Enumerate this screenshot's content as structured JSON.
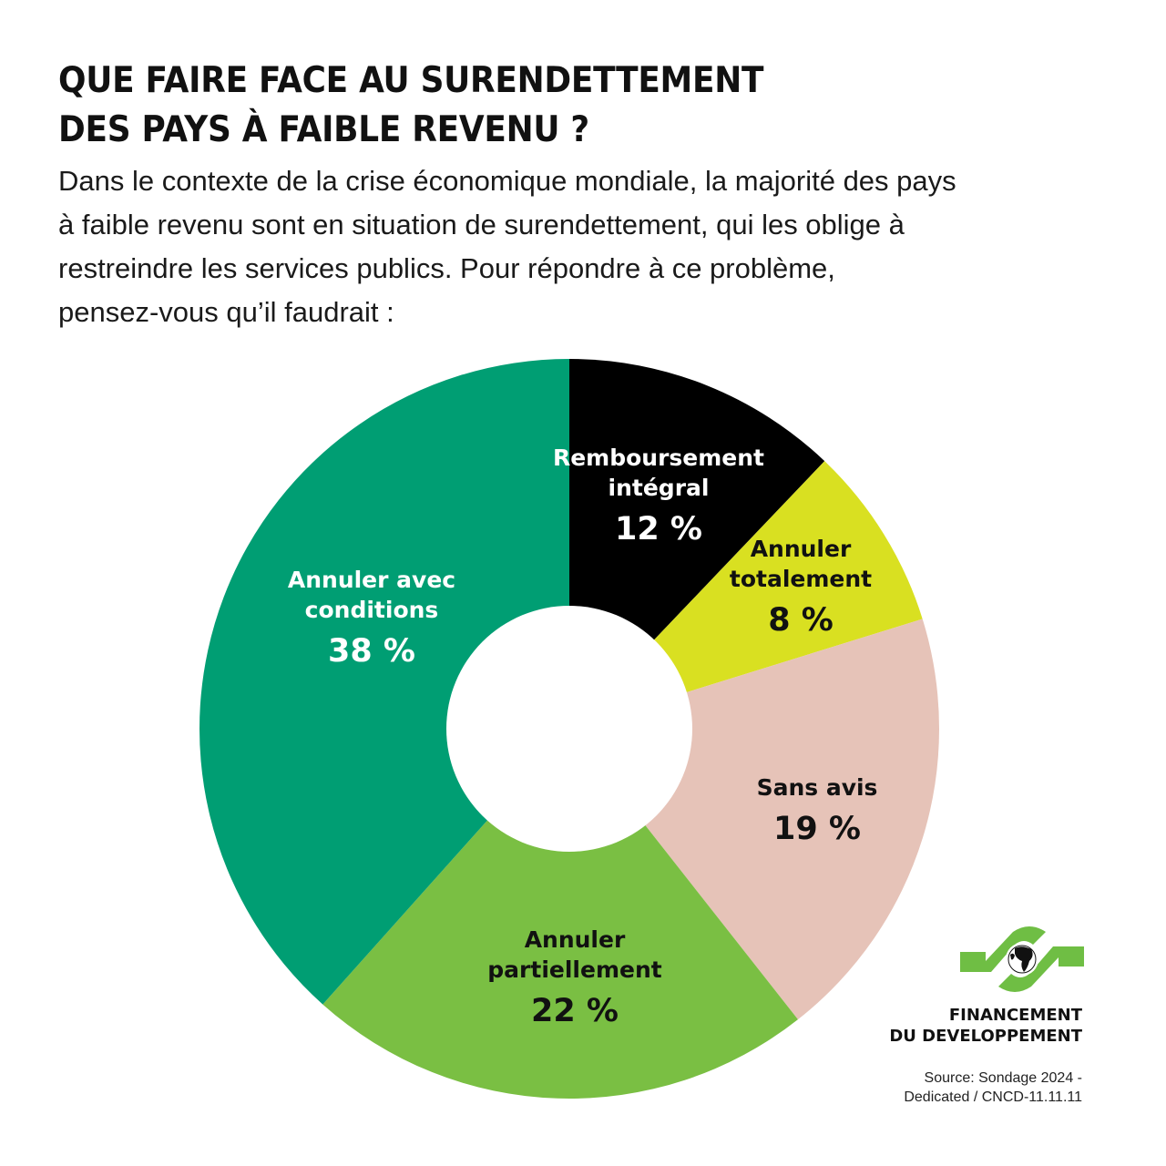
{
  "title": {
    "line1": "QUE FAIRE FACE AU SURENDETTEMENT",
    "line2": "DES PAYS À FAIBLE REVENU ?"
  },
  "intro": {
    "line1": "Dans le contexte de la crise économique mondiale, la majorité des pays",
    "line2": "à faible revenu sont en situation de surendettement, qui les oblige à",
    "line3": "restreindre les services publics. Pour répondre à ce problème,",
    "line4": "pensez-vous qu’il faudrait :"
  },
  "chart_data": {
    "type": "pie",
    "variant": "donut",
    "title": "QUE FAIRE FACE AU SURENDETTEMENT DES PAYS À FAIBLE REVENU ?",
    "start_angle": "12 o'clock",
    "direction": "clockwise",
    "unit": "%",
    "categories": [
      "Remboursement intégral",
      "Annuler totalement",
      "Sans avis",
      "Annuler partiellement",
      "Annuler avec conditions"
    ],
    "values": [
      12,
      8,
      19,
      22,
      38
    ],
    "colors": [
      "#000000",
      "#d9e021",
      "#e6c3b8",
      "#7abf43",
      "#009e73"
    ],
    "legend": "none (labels inside slices)"
  },
  "slices": [
    {
      "name_line1": "Remboursement",
      "name_line2": "intégral",
      "pct_label": "12 %",
      "text_color": "#ffffff"
    },
    {
      "name_line1": "Annuler",
      "name_line2": "totalement",
      "pct_label": "8 %",
      "text_color": "#111111"
    },
    {
      "name_line1": "Sans avis",
      "name_line2": "",
      "pct_label": "19 %",
      "text_color": "#111111"
    },
    {
      "name_line1": "Annuler",
      "name_line2": "partiellement",
      "pct_label": "22 %",
      "text_color": "#111111"
    },
    {
      "name_line1": "Annuler avec",
      "name_line2": "conditions",
      "pct_label": "38 %",
      "text_color": "#ffffff"
    }
  ],
  "branding": {
    "logo_icon": "globe-with-green-arrows-icon",
    "org_line1": "FINANCEMENT",
    "org_line2": "DU DEVELOPPEMENT",
    "accent_color": "#6fbe44"
  },
  "source": {
    "line1": "Source: Sondage 2024 -",
    "line2": "Dedicated /  CNCD-11.11.11"
  }
}
